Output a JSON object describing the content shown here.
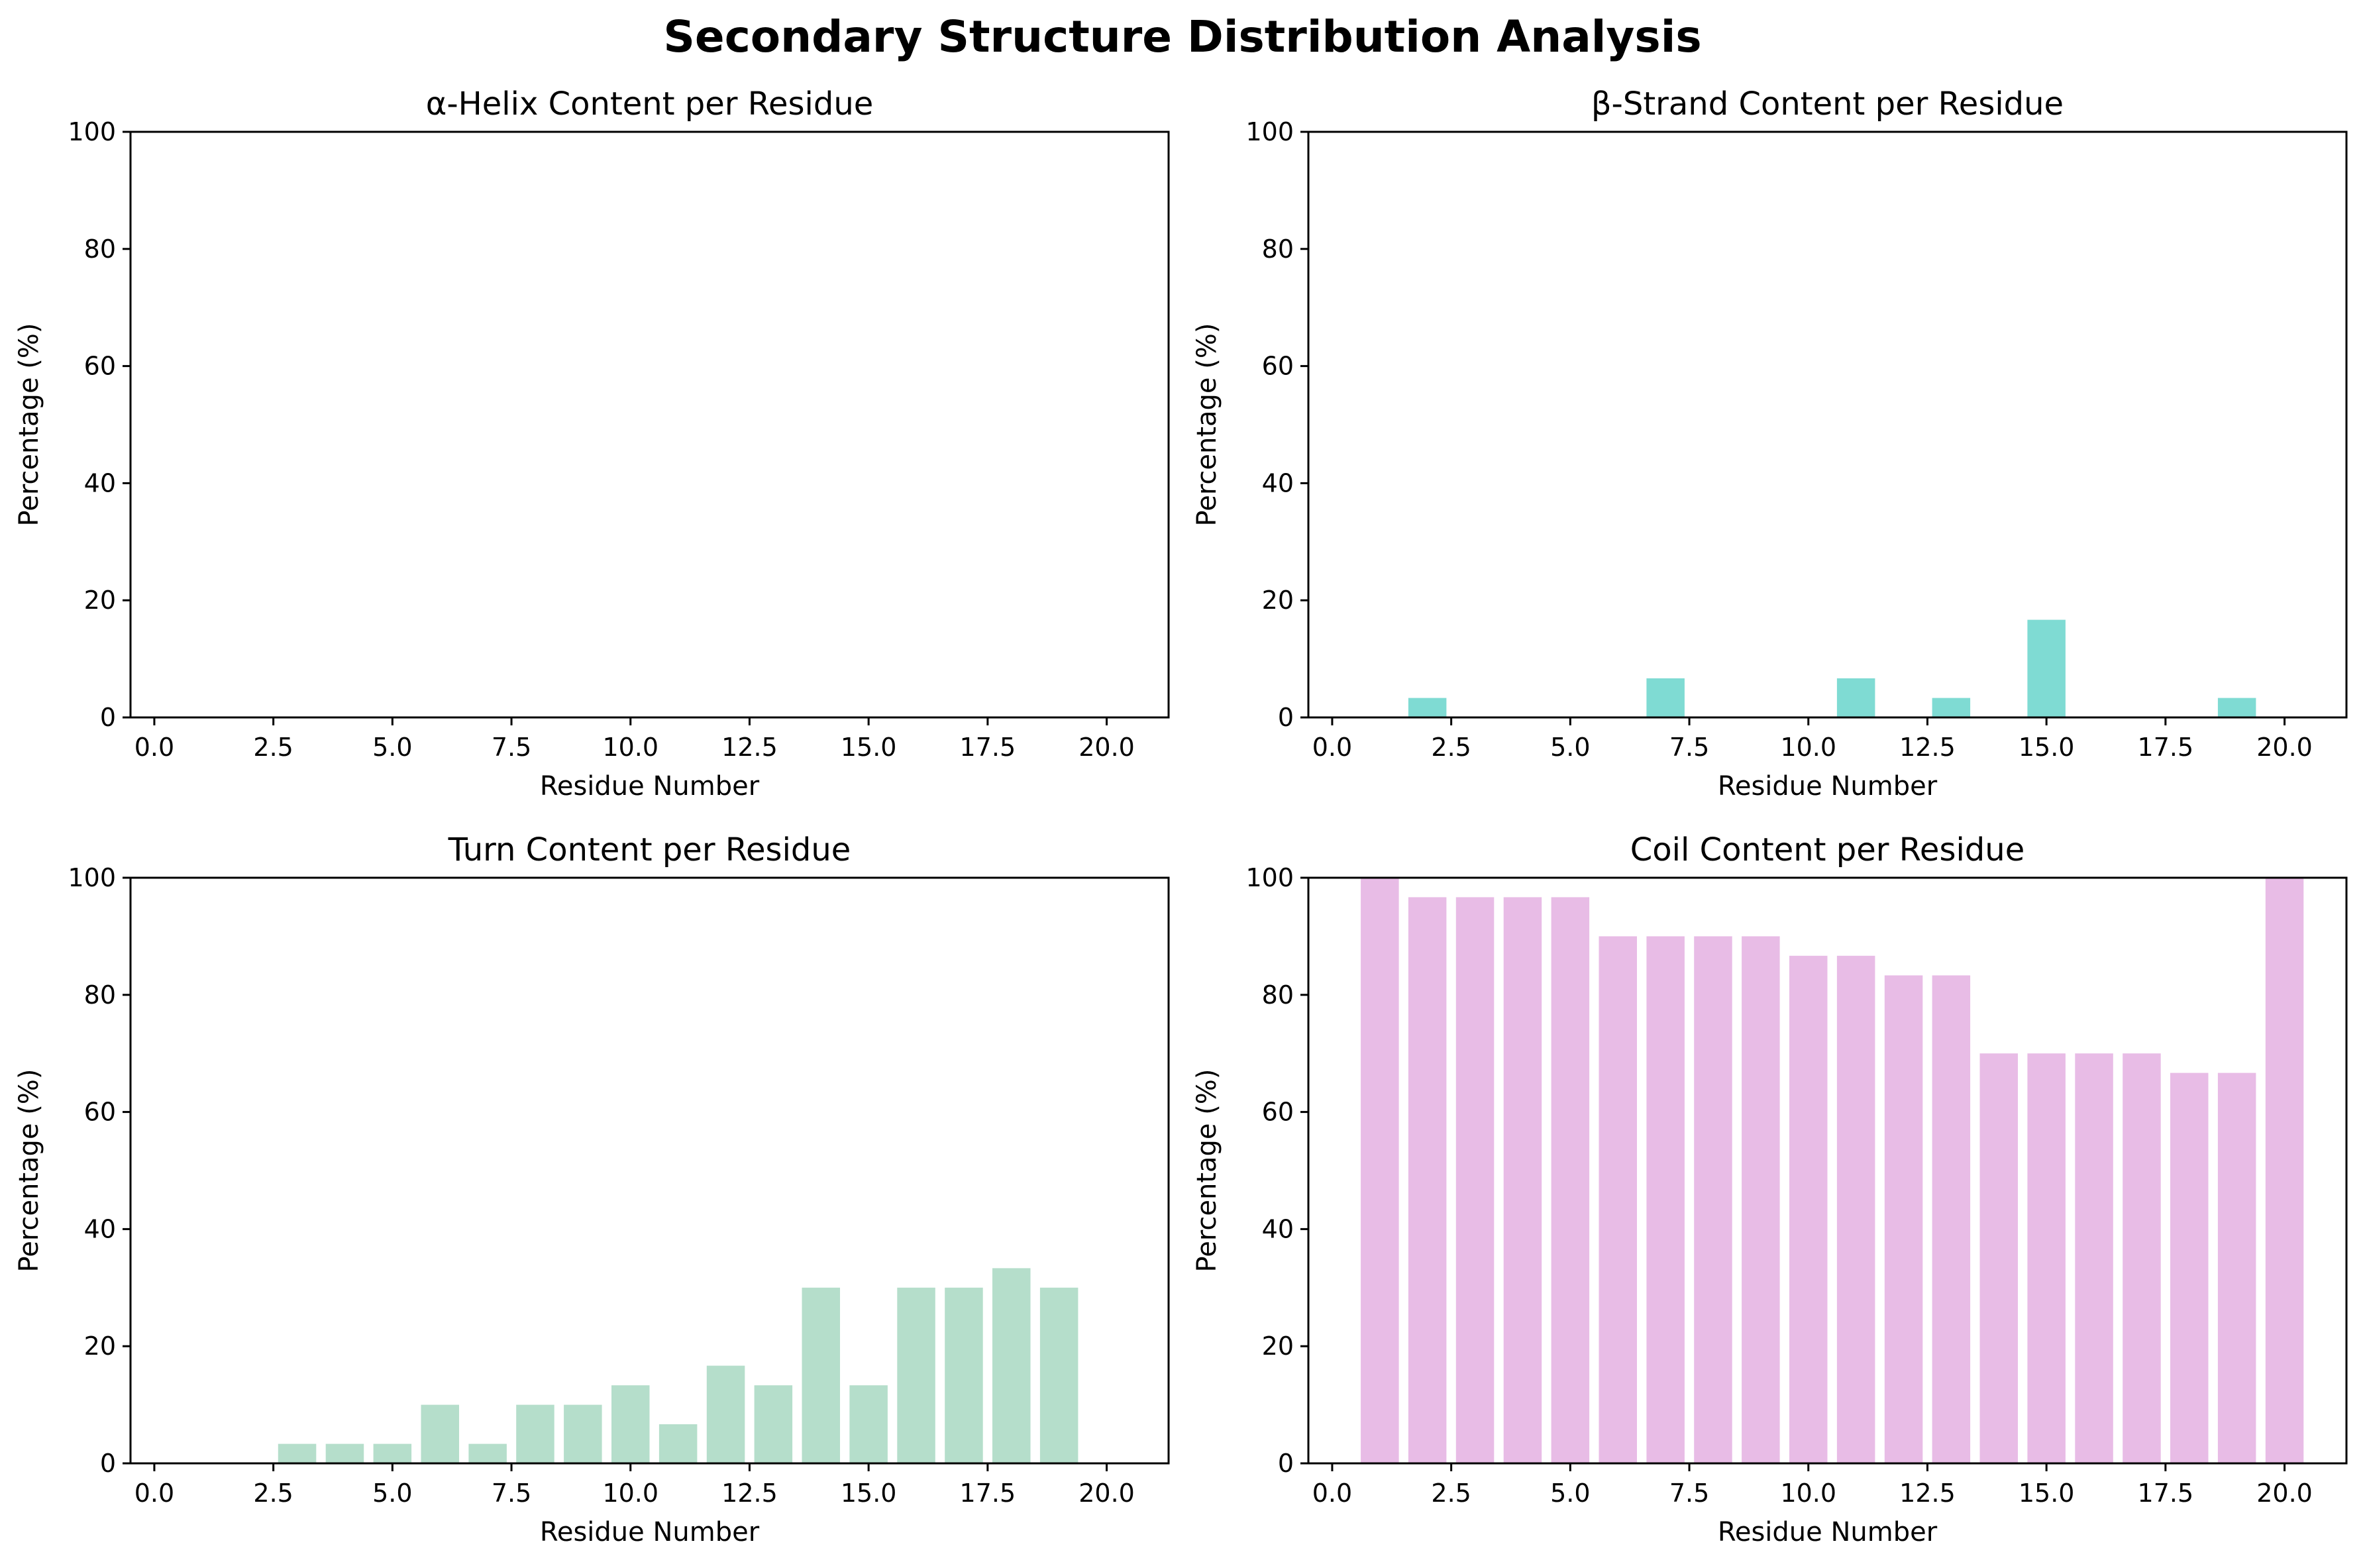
{
  "figure": {
    "title": "Secondary Structure Distribution Analysis"
  },
  "chart_data": [
    {
      "type": "bar",
      "title": "α-Helix Content per Residue",
      "xlabel": "Residue Number",
      "ylabel": "Percentage (%)",
      "xlim": [
        -0.5,
        21.3
      ],
      "ylim": [
        0,
        100
      ],
      "xticks": [
        "0.0",
        "2.5",
        "5.0",
        "7.5",
        "10.0",
        "12.5",
        "15.0",
        "17.5",
        "20.0"
      ],
      "yticks": [
        "0",
        "20",
        "40",
        "60",
        "80",
        "100"
      ],
      "color": "#87CEEB",
      "x": [
        1,
        2,
        3,
        4,
        5,
        6,
        7,
        8,
        9,
        10,
        11,
        12,
        13,
        14,
        15,
        16,
        17,
        18,
        19,
        20
      ],
      "values": [
        0,
        0,
        0,
        0,
        0,
        0,
        0,
        0,
        0,
        0,
        0,
        0,
        0,
        0,
        0,
        0,
        0,
        0,
        0,
        0
      ],
      "grid": false
    },
    {
      "type": "bar",
      "title": "β-Strand Content per Residue",
      "xlabel": "Residue Number",
      "ylabel": "Percentage (%)",
      "xlim": [
        -0.5,
        21.3
      ],
      "ylim": [
        0,
        100
      ],
      "xticks": [
        "0.0",
        "2.5",
        "5.0",
        "7.5",
        "10.0",
        "12.5",
        "15.0",
        "17.5",
        "20.0"
      ],
      "yticks": [
        "0",
        "20",
        "40",
        "60",
        "80",
        "100"
      ],
      "color": "#7FDBD3",
      "x": [
        1,
        2,
        3,
        4,
        5,
        6,
        7,
        8,
        9,
        10,
        11,
        12,
        13,
        14,
        15,
        16,
        17,
        18,
        19,
        20
      ],
      "values": [
        0,
        3.33,
        0,
        0,
        0,
        0,
        6.67,
        0,
        0,
        0,
        6.67,
        0,
        3.33,
        0,
        16.67,
        0,
        0,
        0,
        3.33,
        0
      ],
      "grid": false
    },
    {
      "type": "bar",
      "title": "Turn Content per Residue",
      "xlabel": "Residue Number",
      "ylabel": "Percentage (%)",
      "xlim": [
        -0.5,
        21.3
      ],
      "ylim": [
        0,
        100
      ],
      "xticks": [
        "0.0",
        "2.5",
        "5.0",
        "7.5",
        "10.0",
        "12.5",
        "15.0",
        "17.5",
        "20.0"
      ],
      "yticks": [
        "0",
        "20",
        "40",
        "60",
        "80",
        "100"
      ],
      "color": "#B5DECB",
      "x": [
        1,
        2,
        3,
        4,
        5,
        6,
        7,
        8,
        9,
        10,
        11,
        12,
        13,
        14,
        15,
        16,
        17,
        18,
        19,
        20
      ],
      "values": [
        0,
        0,
        3.33,
        3.33,
        3.33,
        10,
        3.33,
        10,
        10,
        13.33,
        6.67,
        16.67,
        13.33,
        30,
        13.33,
        30,
        30,
        33.33,
        30,
        0
      ],
      "grid": false
    },
    {
      "type": "bar",
      "title": "Coil Content per Residue",
      "xlabel": "Residue Number",
      "ylabel": "Percentage (%)",
      "xlim": [
        -0.5,
        21.3
      ],
      "ylim": [
        0,
        100
      ],
      "xticks": [
        "0.0",
        "2.5",
        "5.0",
        "7.5",
        "10.0",
        "12.5",
        "15.0",
        "17.5",
        "20.0"
      ],
      "yticks": [
        "0",
        "20",
        "40",
        "60",
        "80",
        "100"
      ],
      "color": "#E8BCE6",
      "x": [
        1,
        2,
        3,
        4,
        5,
        6,
        7,
        8,
        9,
        10,
        11,
        12,
        13,
        14,
        15,
        16,
        17,
        18,
        19,
        20
      ],
      "values": [
        100,
        96.67,
        96.67,
        96.67,
        96.67,
        90,
        90,
        90,
        90,
        86.67,
        86.67,
        83.33,
        83.33,
        70,
        70,
        70,
        70,
        66.67,
        66.67,
        100
      ],
      "grid": false
    }
  ]
}
